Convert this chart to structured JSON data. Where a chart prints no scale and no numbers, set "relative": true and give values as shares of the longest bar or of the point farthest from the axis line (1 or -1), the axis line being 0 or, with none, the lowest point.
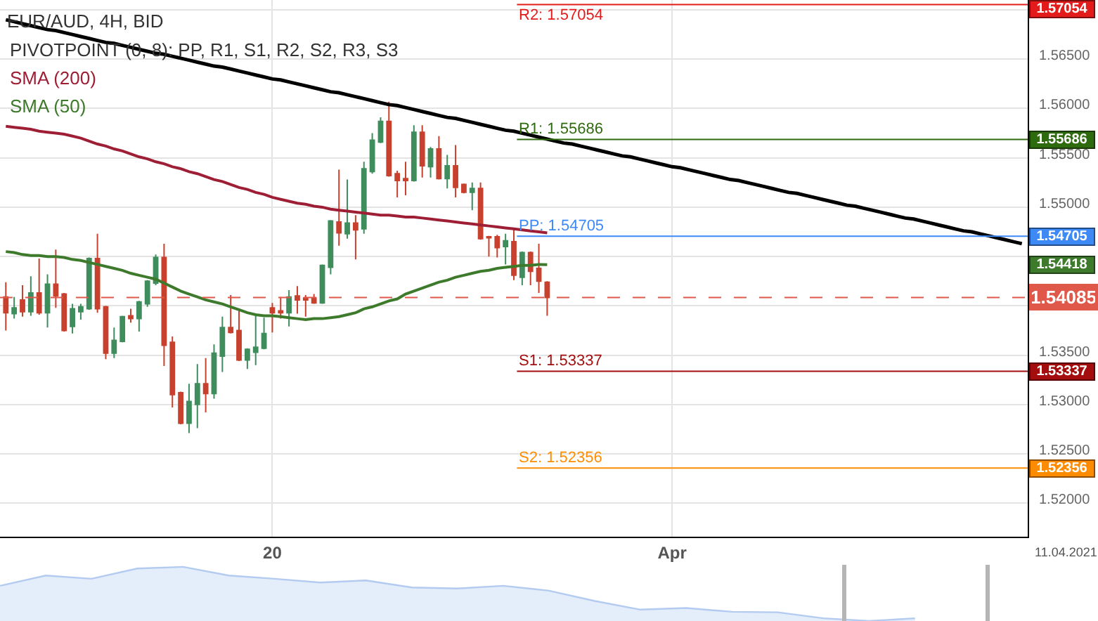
{
  "chart_data": [
    {
      "type": "candlestick",
      "title": "EUR/AUD, 4H, BID",
      "subtitle": "PIVOTPOINT (0, 8): PP, R1, S1, R2, S2, R3, S3",
      "categories": [
        null,
        null,
        null,
        null,
        null,
        null,
        null,
        null,
        null,
        null,
        null,
        null,
        null,
        null,
        null,
        null,
        null,
        null,
        null,
        null,
        null,
        null,
        null,
        null,
        null,
        null,
        null,
        null,
        null,
        null,
        null,
        null,
        "20",
        null,
        null,
        null,
        null,
        null,
        null,
        null,
        null,
        null,
        null,
        null,
        null,
        null,
        null,
        null,
        null,
        null,
        null,
        null,
        null,
        null,
        null,
        null,
        null,
        null,
        null,
        null,
        null,
        null,
        null,
        null,
        null,
        null,
        null,
        null,
        null,
        null,
        null,
        null,
        null,
        null,
        null,
        null,
        null,
        null,
        null,
        null,
        "Apr",
        null,
        null,
        null,
        null,
        null,
        null,
        null,
        null,
        null,
        null,
        null,
        null,
        null,
        null,
        null,
        null,
        null,
        null,
        null,
        null,
        null,
        null,
        null,
        null,
        null,
        null,
        null,
        null,
        null,
        null,
        null,
        null,
        null,
        null,
        null,
        null,
        null,
        null,
        null,
        null,
        null,
        null
      ],
      "ohlc": [
        [
          1.5409,
          1.5424,
          1.5375,
          1.5393
        ],
        [
          1.5392,
          1.5409,
          1.5387,
          1.5398
        ],
        [
          1.5406,
          1.5421,
          1.5389,
          1.5394
        ],
        [
          1.5394,
          1.543,
          1.539,
          1.5413
        ],
        [
          1.5413,
          1.5448,
          1.5391,
          1.5393
        ],
        [
          1.5393,
          1.5432,
          1.5378,
          1.5422
        ],
        [
          1.5422,
          1.5457,
          1.5398,
          1.541
        ],
        [
          1.5412,
          1.5413,
          1.5374,
          1.5375
        ],
        [
          1.5379,
          1.5402,
          1.5372,
          1.5397
        ],
        [
          1.5394,
          1.5402,
          1.5386,
          1.5399
        ],
        [
          1.5397,
          1.5449,
          1.5396,
          1.5448
        ],
        [
          1.5448,
          1.5473,
          1.5393,
          1.5397
        ],
        [
          1.5399,
          1.54,
          1.5346,
          1.5352
        ],
        [
          1.5352,
          1.5378,
          1.5347,
          1.5365
        ],
        [
          1.5364,
          1.539,
          1.5363,
          1.5389
        ],
        [
          1.539,
          1.5397,
          1.5383,
          1.5387
        ],
        [
          1.5387,
          1.5405,
          1.5374,
          1.5404
        ],
        [
          1.5402,
          1.5426,
          1.5399,
          1.5425
        ],
        [
          1.5423,
          1.5452,
          1.5421,
          1.5449
        ],
        [
          1.5449,
          1.5463,
          1.5339,
          1.536
        ],
        [
          1.5363,
          1.5369,
          1.5297,
          1.531
        ],
        [
          1.5312,
          1.5313,
          1.528,
          1.5281
        ],
        [
          1.5281,
          1.5321,
          1.5271,
          1.5303
        ],
        [
          1.53,
          1.5341,
          1.5276,
          1.5321
        ],
        [
          1.5321,
          1.5347,
          1.5292,
          1.5311
        ],
        [
          1.5311,
          1.5361,
          1.5306,
          1.5352
        ],
        [
          1.5349,
          1.5389,
          1.5333,
          1.5378
        ],
        [
          1.5378,
          1.5411,
          1.5372,
          1.5373
        ],
        [
          1.5375,
          1.5397,
          1.5344,
          1.5345
        ],
        [
          1.5345,
          1.5357,
          1.5336,
          1.5356
        ],
        [
          1.5353,
          1.5391,
          1.534,
          1.5358
        ],
        [
          1.5357,
          1.5388,
          1.5356,
          1.5372
        ],
        [
          1.5398,
          1.5403,
          1.5373,
          1.5393
        ],
        [
          1.5395,
          1.5409,
          1.5387,
          1.5393
        ],
        [
          1.5393,
          1.5416,
          1.5379,
          1.5409
        ],
        [
          1.541,
          1.542,
          1.5392,
          1.5406
        ],
        [
          1.5408,
          1.5411,
          1.5389,
          1.5406
        ],
        [
          1.5408,
          1.5412,
          1.5402,
          1.5403
        ],
        [
          1.5403,
          1.5442,
          1.5402,
          1.5441
        ],
        [
          1.5439,
          1.5487,
          1.5432,
          1.5486
        ],
        [
          1.5485,
          1.5538,
          1.5461,
          1.5474
        ],
        [
          1.5473,
          1.5528,
          1.5468,
          1.5484
        ],
        [
          1.5484,
          1.5492,
          1.5447,
          1.5477
        ],
        [
          1.5478,
          1.5546,
          1.5473,
          1.5539
        ],
        [
          1.5536,
          1.5575,
          1.5534,
          1.5568
        ],
        [
          1.5566,
          1.5591,
          1.5565,
          1.5587
        ],
        [
          1.5587,
          1.5607,
          1.5531,
          1.5532
        ],
        [
          1.5534,
          1.5537,
          1.551,
          1.5527
        ],
        [
          1.5529,
          1.5546,
          1.5512,
          1.5527
        ],
        [
          1.5527,
          1.5583,
          1.5526,
          1.5576
        ],
        [
          1.5576,
          1.5583,
          1.553,
          1.5542
        ],
        [
          1.5541,
          1.5561,
          1.553,
          1.5559
        ],
        [
          1.5559,
          1.5572,
          1.5528,
          1.5529
        ],
        [
          1.5529,
          1.5553,
          1.5519,
          1.5542
        ],
        [
          1.5542,
          1.5563,
          1.551,
          1.552
        ],
        [
          1.5523,
          1.5524,
          1.5514,
          1.5515
        ],
        [
          1.5515,
          1.5525,
          1.5497,
          1.5519
        ],
        [
          1.5519,
          1.5525,
          1.5467,
          1.5468
        ],
        [
          1.547,
          1.5471,
          1.545,
          1.5469
        ],
        [
          1.547,
          1.5472,
          1.5449,
          1.5459
        ],
        [
          1.546,
          1.5473,
          1.5442,
          1.5466
        ],
        [
          1.5465,
          1.5478,
          1.5426,
          1.5431
        ],
        [
          1.5429,
          1.5455,
          1.5421,
          1.5454
        ],
        [
          1.5454,
          1.5455,
          1.5421,
          1.5435
        ],
        [
          1.5438,
          1.5463,
          1.5413,
          1.5425
        ],
        [
          1.5424,
          1.5425,
          1.539,
          1.54085
        ],
        null,
        null,
        null,
        null,
        null,
        null,
        null,
        null,
        null,
        null,
        null,
        null,
        null,
        null,
        null,
        null,
        null,
        null,
        null,
        null,
        null,
        null,
        null,
        null,
        null,
        null,
        null,
        null,
        null,
        null,
        null,
        null,
        null,
        null,
        null,
        null,
        null,
        null,
        null,
        null,
        null,
        null,
        null,
        null,
        null,
        null,
        null,
        null,
        null,
        null,
        null,
        null,
        null,
        null,
        null,
        null,
        null
      ],
      "colors": [
        "#c8412e",
        "#3f8d5c",
        "#c8412e",
        "#3f8d5c",
        "#c8412e",
        "#3f8d5c",
        "#c8412e",
        "#c8412e",
        "#3f8d5c",
        "#3f8d5c",
        "#3f8d5c",
        "#c8412e",
        "#c8412e",
        "#3f8d5c",
        "#3f8d5c",
        "#c8412e",
        "#3f8d5c",
        "#3f8d5c",
        "#3f8d5c",
        "#c8412e",
        "#c8412e",
        "#c8412e",
        "#3f8d5c",
        "#3f8d5c",
        "#c8412e",
        "#3f8d5c",
        "#3f8d5c",
        "#c8412e",
        "#c8412e",
        "#3f8d5c",
        "#3f8d5c",
        "#3f8d5c",
        "#c8412e",
        "#c8412e",
        "#3f8d5c",
        "#c8412e",
        "#c8412e",
        "#c8412e",
        "#3f8d5c",
        "#3f8d5c",
        "#c8412e",
        "#3f8d5c",
        "#c8412e",
        "#3f8d5c",
        "#3f8d5c",
        "#3f8d5c",
        "#c8412e",
        "#c8412e",
        "#c8412e",
        "#3f8d5c",
        "#c8412e",
        "#3f8d5c",
        "#c8412e",
        "#3f8d5c",
        "#c8412e",
        "#c8412e",
        "#3f8d5c",
        "#c8412e",
        "#c8412e",
        "#c8412e",
        "#3f8d5c",
        "#c8412e",
        "#3f8d5c",
        "#c8412e",
        "#c8412e",
        "#c8412e",
        null,
        null,
        null,
        null,
        null,
        null,
        null,
        null,
        null,
        null,
        null,
        null,
        null,
        null,
        null,
        null,
        null,
        null,
        null,
        null,
        null,
        null,
        null,
        null,
        null,
        null,
        null,
        null,
        null,
        null,
        null,
        null,
        null,
        null,
        null,
        null,
        null,
        null,
        null,
        null,
        null,
        null,
        null,
        null,
        null,
        null,
        null,
        null,
        null,
        null,
        null,
        null,
        null,
        null,
        null,
        null,
        null
      ],
      "series": [
        {
          "name": "SMA (200)",
          "type": "line",
          "color": "#9e1f35",
          "values": [
            1.5582,
            1.5581,
            1.558,
            1.5579,
            1.5577,
            1.5576,
            1.5575,
            1.5574,
            1.5572,
            1.557,
            1.5567,
            1.5564,
            1.5562,
            1.5559,
            1.5557,
            1.5554,
            1.5551,
            1.5549,
            1.5546,
            1.5544,
            1.5541,
            1.5539,
            1.5536,
            1.5534,
            1.5531,
            1.5528,
            1.5526,
            1.5523,
            1.552,
            1.5518,
            1.5515,
            1.5513,
            1.551,
            1.5508,
            1.5506,
            1.5504,
            1.5503,
            1.5501,
            1.55,
            1.5498,
            1.5497,
            1.5496,
            1.5495,
            1.5494,
            1.5493,
            1.5492,
            1.5492,
            1.5491,
            1.549,
            1.549,
            1.5489,
            1.5488,
            1.5487,
            1.5486,
            1.5485,
            1.5484,
            1.5483,
            1.5482,
            1.5481,
            1.548,
            1.5479,
            1.5478,
            1.5477,
            1.5476,
            1.5475,
            1.5474,
            null,
            null,
            null,
            null,
            null,
            null,
            null,
            null,
            null,
            null,
            null,
            null,
            null,
            null,
            null,
            null,
            null,
            null,
            null,
            null,
            null,
            null,
            null,
            null,
            null,
            null,
            null,
            null,
            null,
            null,
            null,
            null,
            null,
            null,
            null,
            null,
            null,
            null,
            null,
            null,
            null,
            null,
            null,
            null,
            null,
            null,
            null,
            null,
            null,
            null,
            null,
            null,
            null,
            null,
            null,
            null,
            null
          ]
        },
        {
          "name": "SMA (50)",
          "type": "line",
          "color": "#3e7a2c",
          "values": [
            1.5455,
            1.5454,
            1.5452,
            1.5451,
            1.5451,
            1.545,
            1.545,
            1.5449,
            1.5447,
            1.5446,
            1.5444,
            1.5442,
            1.544,
            1.5438,
            1.5436,
            1.5433,
            1.5431,
            1.5429,
            1.5427,
            1.5423,
            1.5419,
            1.5415,
            1.5412,
            1.5409,
            1.5406,
            1.5404,
            1.5402,
            1.5399,
            1.5396,
            1.5393,
            1.5391,
            1.539,
            1.539,
            1.5389,
            1.5388,
            1.5387,
            1.5386,
            1.5387,
            1.5387,
            1.5388,
            1.5389,
            1.5391,
            1.5393,
            1.5397,
            1.5399,
            1.5402,
            1.5405,
            1.5407,
            1.5412,
            1.5415,
            1.5418,
            1.5421,
            1.5424,
            1.5426,
            1.5429,
            1.5431,
            1.5433,
            1.5435,
            1.5436,
            1.5438,
            1.5439,
            1.544,
            1.5441,
            1.5441,
            1.5442,
            1.54418,
            null,
            null,
            null,
            null,
            null,
            null,
            null,
            null,
            null,
            null,
            null,
            null,
            null,
            null,
            null,
            null,
            null,
            null,
            null,
            null,
            null,
            null,
            null,
            null,
            null,
            null,
            null,
            null,
            null,
            null,
            null,
            null,
            null,
            null,
            null,
            null,
            null,
            null,
            null,
            null,
            null,
            null,
            null,
            null,
            null,
            null,
            null,
            null,
            null,
            null,
            null,
            null,
            null,
            null,
            null,
            null,
            null
          ]
        },
        {
          "type": "line",
          "color": "#000000",
          "values": [
            1.569,
            1.5688,
            1.5686,
            1.5684,
            1.5682,
            1.568,
            1.5679,
            1.5677,
            1.5675,
            1.5673,
            1.5671,
            1.5669,
            1.5667,
            1.5666,
            1.5664,
            1.5662,
            1.566,
            1.5658,
            1.5656,
            1.5655,
            1.5653,
            1.5651,
            1.5649,
            1.5647,
            1.5645,
            1.5643,
            1.5642,
            1.564,
            1.5638,
            1.5636,
            1.5634,
            1.5632,
            1.563,
            1.5629,
            1.5627,
            1.5625,
            1.5623,
            1.5621,
            1.5619,
            1.5617,
            1.5616,
            1.5614,
            1.5612,
            1.561,
            1.5608,
            1.5606,
            1.5604,
            1.5603,
            1.5601,
            1.5599,
            1.5597,
            1.5595,
            1.5593,
            1.5591,
            1.559,
            1.5588,
            1.5586,
            1.5584,
            1.5582,
            1.558,
            1.5578,
            1.5577,
            1.5575,
            1.5573,
            1.5571,
            1.5569,
            1.5567,
            1.5565,
            1.5564,
            1.5562,
            1.556,
            1.5558,
            1.5556,
            1.5554,
            1.5552,
            1.5551,
            1.5549,
            1.5547,
            1.5545,
            1.5543,
            1.5541,
            1.554,
            1.5538,
            1.5536,
            1.5534,
            1.5532,
            1.553,
            1.5528,
            1.5527,
            1.5525,
            1.5523,
            1.5521,
            1.5519,
            1.5517,
            1.5515,
            1.5514,
            1.5512,
            1.551,
            1.5508,
            1.5506,
            1.5504,
            1.5502,
            1.5501,
            1.5499,
            1.5497,
            1.5495,
            1.5493,
            1.5491,
            1.5489,
            1.5488,
            1.5486,
            1.5484,
            1.5482,
            1.548,
            1.5478,
            1.5476,
            1.5475,
            1.5473,
            1.5471,
            1.5469,
            1.5467,
            1.5465,
            1.5463
          ]
        }
      ],
      "ylim": [
        1.5166,
        1.571
      ],
      "yticks": [
        {
          "value": 1.52,
          "label": "1.52000"
        },
        {
          "value": 1.525,
          "label": "1.52500"
        },
        {
          "value": 1.53,
          "label": "1.53000"
        },
        {
          "value": 1.535,
          "label": "1.53500"
        },
        {
          "value": 1.54,
          "label": null
        },
        {
          "value": 1.545,
          "label": null
        },
        {
          "value": 1.55,
          "label": "1.55000"
        },
        {
          "value": 1.555,
          "label": "1.55500"
        },
        {
          "value": 1.56,
          "label": "1.56000"
        },
        {
          "value": 1.565,
          "label": "1.56500"
        },
        {
          "value": 1.57,
          "label": null
        }
      ],
      "ref_lines": [
        {
          "axis": "y",
          "value": 1.57054,
          "label": "R2: 1.57054",
          "color": "#e31b1b"
        },
        {
          "axis": "y",
          "value": 1.55686,
          "label": "R1: 1.55686",
          "color": "#2e6a0e"
        },
        {
          "axis": "y",
          "value": 1.54705,
          "label": "PP: 1.54705",
          "color": "#3d8af7"
        },
        {
          "axis": "y",
          "value": 1.53337,
          "label": "S1: 1.53337",
          "color": "#a30d0d"
        },
        {
          "axis": "y",
          "value": 1.52356,
          "label": "S2: 1.52356",
          "color": "#ff8c00"
        },
        {
          "axis": "y",
          "value": 1.54085,
          "color": "#e0584a",
          "line_style": "dashed"
        }
      ],
      "annotations": [
        "11.04.2021",
        "1.57054",
        "1.55686",
        "1.54705",
        "1.54418",
        "1.54085",
        "1.53337",
        "1.52356"
      ],
      "grid": true,
      "legend": "top left"
    },
    {
      "type": "area",
      "relative": true,
      "categories": [
        null,
        null,
        null,
        null,
        null,
        null,
        null,
        null,
        null,
        null,
        null,
        null,
        null,
        null,
        null,
        null,
        null,
        null,
        null,
        null,
        null,
        null,
        null,
        null,
        null
      ],
      "values": [
        0.65,
        0.84,
        0.78,
        0.97,
        1,
        0.84,
        0.78,
        0.71,
        0.75,
        0.62,
        0.6,
        0.65,
        0.56,
        0.37,
        0.21,
        0.24,
        0.17,
        0.16,
        0.05,
        0,
        0.05,
        null,
        null,
        null,
        null
      ],
      "color": "#b3cbf0"
    }
  ]
}
